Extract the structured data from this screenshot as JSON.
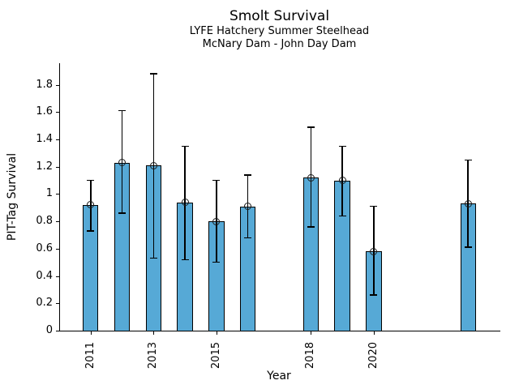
{
  "chart_data": {
    "type": "bar",
    "title": "Smolt Survival",
    "subtitle_line1": "LYFE Hatchery Summer Steelhead",
    "subtitle_line2": "McNary Dam - John Day Dam",
    "xlabel": "Year",
    "ylabel": "PIT-Tag Survival",
    "x": [
      2011,
      2012,
      2013,
      2014,
      2015,
      2016,
      2018,
      2019,
      2020,
      2023
    ],
    "values": [
      0.92,
      1.23,
      1.21,
      0.94,
      0.8,
      0.91,
      1.12,
      1.1,
      0.58,
      0.93
    ],
    "err_low": [
      0.73,
      0.86,
      0.53,
      0.52,
      0.5,
      0.68,
      0.76,
      0.84,
      0.26,
      0.61
    ],
    "err_high": [
      1.1,
      1.61,
      1.88,
      1.35,
      1.1,
      1.14,
      1.49,
      1.35,
      0.91,
      1.25
    ],
    "xticks": [
      2011,
      2013,
      2015,
      2018,
      2020
    ],
    "yticks": [
      0,
      0.2,
      0.4,
      0.6,
      0.8,
      1,
      1.2,
      1.4,
      1.6,
      1.8
    ],
    "xlim": [
      2010,
      2024
    ],
    "ylim": [
      0,
      1.958
    ],
    "bar_width_years": 0.5,
    "bar_color": "#56a9d6",
    "bar_edge_color": "#000000",
    "error_color": "#000000",
    "marker": "open-circle",
    "grid": false,
    "legend": null
  }
}
